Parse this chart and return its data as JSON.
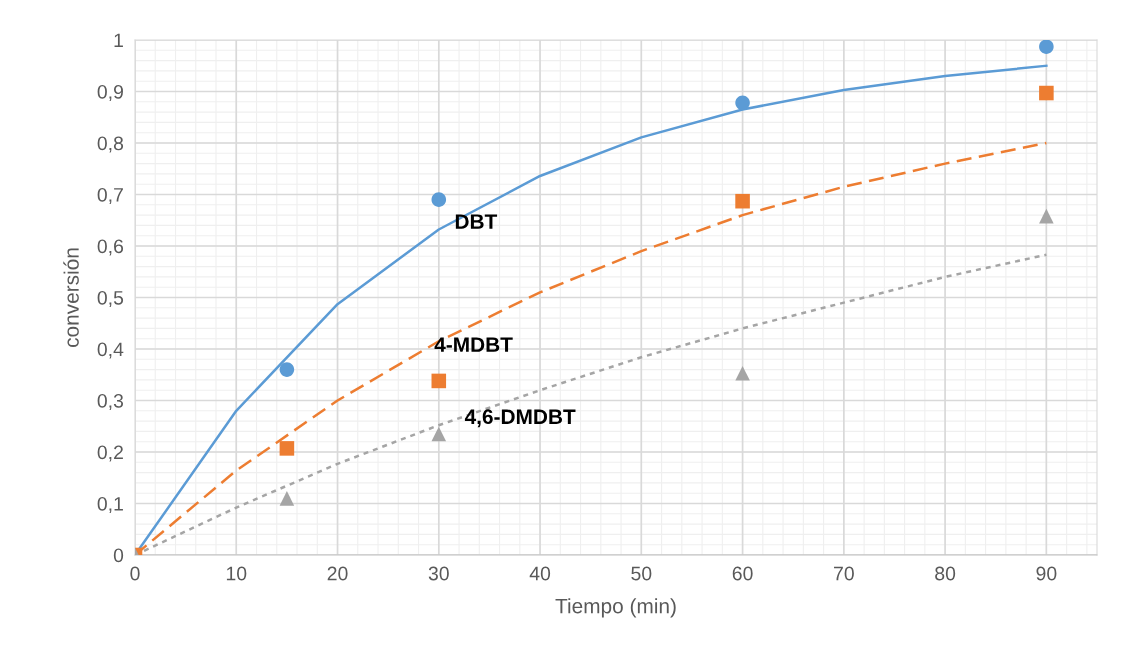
{
  "chart_data": {
    "type": "scatter",
    "xlabel": "Tiempo (min)",
    "ylabel": "conversión",
    "x": [
      0,
      15,
      30,
      60,
      90
    ],
    "series": [
      {
        "marker": "circle",
        "color": "#5b9bd5",
        "values": [
          null,
          0.36,
          0.69,
          0.878,
          0.987
        ]
      },
      {
        "marker": "square",
        "color": "#ed7d31",
        "values": [
          0,
          0.207,
          0.338,
          0.687,
          0.897
        ]
      },
      {
        "marker": "triangle",
        "color": "#a5a5a5",
        "values": [
          0,
          0.11,
          0.235,
          0.353,
          0.658
        ]
      },
      {
        "type": "line",
        "line_style": "solid",
        "color": "#5b9bd5",
        "x": [
          0,
          10,
          20,
          30,
          40,
          50,
          60,
          70,
          80,
          90
        ],
        "values": [
          0,
          0.28,
          0.487,
          0.632,
          0.736,
          0.811,
          0.865,
          0.903,
          0.93,
          0.95
        ]
      },
      {
        "type": "line",
        "line_style": "dashed",
        "color": "#ed7d31",
        "x": [
          0,
          10,
          20,
          30,
          40,
          50,
          60,
          70,
          80,
          90
        ],
        "values": [
          0,
          0.164,
          0.3,
          0.415,
          0.51,
          0.59,
          0.66,
          0.715,
          0.76,
          0.8
        ]
      },
      {
        "type": "line",
        "line_style": "dotted",
        "color": "#a5a5a5",
        "x": [
          0,
          10,
          20,
          30,
          40,
          50,
          60,
          70,
          80,
          90
        ],
        "values": [
          0,
          0.092,
          0.177,
          0.252,
          0.32,
          0.384,
          0.44,
          0.49,
          0.54,
          0.583
        ]
      }
    ],
    "annotations": [
      {
        "text": "DBT",
        "x": 31,
        "y": 0.644
      },
      {
        "text": "4-MDBT",
        "x": 29,
        "y": 0.405
      },
      {
        "text": "4,6-DMDBT",
        "x": 32,
        "y": 0.265
      }
    ],
    "xlim": [
      0,
      95
    ],
    "xticks": [
      0,
      10,
      20,
      30,
      40,
      50,
      60,
      70,
      80,
      90
    ],
    "ylim": [
      0,
      1
    ],
    "yticks": [
      0,
      {
        "value": 0.1,
        "label": "0,1"
      },
      {
        "value": 0.2,
        "label": "0,2"
      },
      {
        "value": 0.3,
        "label": "0,3"
      },
      {
        "value": 0.4,
        "label": "0,4"
      },
      {
        "value": 0.5,
        "label": "0,5"
      },
      {
        "value": 0.6,
        "label": "0,6"
      },
      {
        "value": 0.7,
        "label": "0,7"
      },
      {
        "value": 0.8,
        "label": "0,8"
      },
      {
        "value": 0.9,
        "label": "0,9"
      },
      1
    ],
    "grid": true
  }
}
